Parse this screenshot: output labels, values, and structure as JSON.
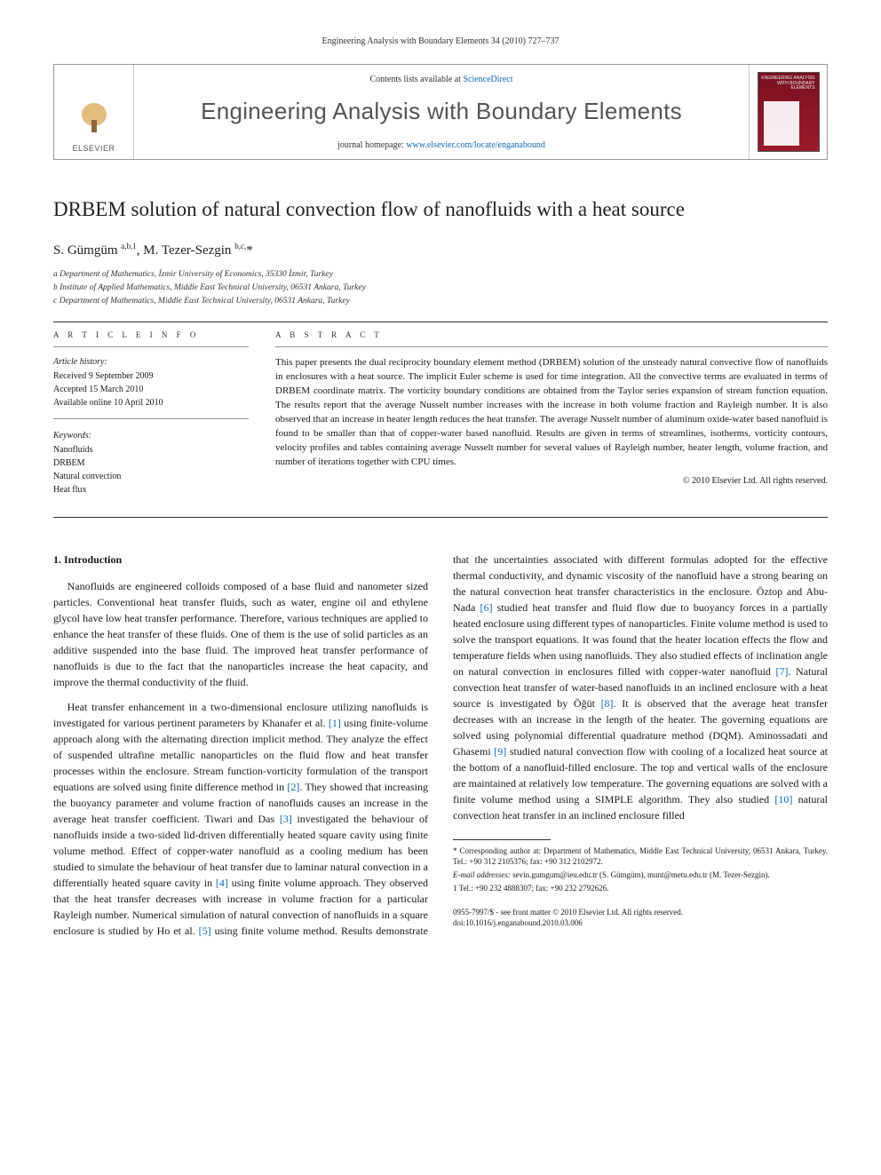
{
  "running_head": "Engineering Analysis with Boundary Elements 34 (2010) 727–737",
  "header": {
    "publisher_word": "ELSEVIER",
    "contents_prefix": "Contents lists available at ",
    "contents_link": "ScienceDirect",
    "journal_title": "Engineering Analysis with Boundary Elements",
    "homepage_prefix": "journal homepage: ",
    "homepage_url": "www.elsevier.com/locate/enganabound",
    "cover_label": "ENGINEERING ANALYSIS WITH BOUNDARY ELEMENTS"
  },
  "article": {
    "title": "DRBEM solution of natural convection flow of nanofluids with a heat source",
    "authors_html": "S. Gümgüm <sup>a,b,1</sup>, M. Tezer-Sezgin <sup>b,c,</sup><span class=\"star\">*</span>",
    "affiliations": [
      "a Department of Mathematics, İzmir University of Economics, 35330 İzmir, Turkey",
      "b Institute of Applied Mathematics, Middle East Technical University, 06531 Ankara, Turkey",
      "c Department of Mathematics, Middle East Technical University, 06531 Ankara, Turkey"
    ]
  },
  "info": {
    "info_head": "A R T I C L E   I N F O",
    "abstract_head": "A B S T R A C T",
    "history_label": "Article history:",
    "history": [
      "Received 9 September 2009",
      "Accepted 15 March 2010",
      "Available online 10 April 2010"
    ],
    "keywords_label": "Keywords:",
    "keywords": [
      "Nanofluids",
      "DRBEM",
      "Natural convection",
      "Heat flux"
    ],
    "abstract": "This paper presents the dual reciprocity boundary element method (DRBEM) solution of the unsteady natural convective flow of nanofluids in enclosures with a heat source. The implicit Euler scheme is used for time integration. All the convective terms are evaluated in terms of DRBEM coordinate matrix. The vorticity boundary conditions are obtained from the Taylor series expansion of stream function equation. The results report that the average Nusselt number increases with the increase in both volume fraction and Rayleigh number. It is also observed that an increase in heater length reduces the heat transfer. The average Nusselt number of aluminum oxide-water based nanofluid is found to be smaller than that of copper-water based nanofluid. Results are given in terms of streamlines, isotherms, vorticity contours, velocity profiles and tables containing average Nusselt number for several values of Rayleigh number, heater length, volume fraction, and number of iterations together with CPU times.",
    "copyright": "© 2010 Elsevier Ltd. All rights reserved."
  },
  "body": {
    "section_no": "1.",
    "section_title": "Introduction",
    "p1": "Nanofluids are engineered colloids composed of a base fluid and nanometer sized particles. Conventional heat transfer fluids, such as water, engine oil and ethylene glycol have low heat transfer performance. Therefore, various techniques are applied to enhance the heat transfer of these fluids. One of them is the use of solid particles as an additive suspended into the base fluid. The improved heat transfer performance of nanofluids is due to the fact that the nanoparticles increase the heat capacity, and improve the thermal conductivity of the fluid.",
    "p2a": "Heat transfer enhancement in a two-dimensional enclosure utilizing nanofluids is investigated for various pertinent parameters by Khanafer et al. ",
    "r1": "[1]",
    "p2b": " using finite-volume approach along with the alternating direction implicit method. They analyze the effect of suspended ultrafine metallic nanoparticles on the fluid flow and heat transfer processes within the enclosure. Stream function-vorticity formulation of the transport equations are solved using finite difference method in ",
    "r2": "[2]",
    "p2c": ". They showed that increasing the buoyancy parameter and volume fraction of nanofluids causes an increase in the average heat transfer coefficient. Tiwari and Das ",
    "r3": "[3]",
    "p2d": " investigated the behaviour of nanofluids inside a two-sided lid-driven differentially heated square cavity using finite volume method. Effect of copper-water nanofluid as a cooling medium has been studied to simulate the behaviour of heat transfer due to laminar natural convection in a differentially heated square cavity in ",
    "r4": "[4]",
    "p2e": " using finite volume approach. They observed that the heat transfer decreases with increase in volume fraction for a particular Rayleigh number. Numerical simulation of natural convection of nanofluids in a square enclosure is studied by Ho et al. ",
    "r5": "[5]",
    "p2f": " using finite volume method. Results demonstrate that the uncertainties associated with different formulas adopted for the effective thermal conductivity, and dynamic viscosity of the nanofluid have a strong bearing on the natural convection heat transfer characteristics in the enclosure. Öztop and Abu-Nada ",
    "r6": "[6]",
    "p2g": " studied heat transfer and fluid flow due to buoyancy forces in a partially heated enclosure using different types of nanoparticles. Finite volume method is used to solve the transport equations. It was found that the heater location effects the flow and temperature fields when using nanofluids. They also studied effects of inclination angle on natural convection in enclosures filled with copper-water nanofluid ",
    "r7": "[7]",
    "p2h": ". Natural convection heat transfer of water-based nanofluids in an inclined enclosure with a heat source is investigated by Öğüt ",
    "r8": "[8]",
    "p2i": ". It is observed that the average heat transfer decreases with an increase in the length of the heater. The governing equations are solved using polynomial differential quadrature method (DQM). Aminossadati and Ghasemi ",
    "r9": "[9]",
    "p2j": " studied natural convection flow with cooling of a localized heat source at the bottom of a nanofluid-filled enclosure. The top and vertical walls of the enclosure are maintained at relatively low temperature. The governing equations are solved with a finite volume method using a SIMPLE algorithm. They also studied ",
    "r10": "[10]",
    "p2k": " natural convection heat transfer in an inclined enclosure filled"
  },
  "footnotes": {
    "corr": "* Corresponding author at: Department of Mathematics, Middle East Technical University, 06531 Ankara, Turkey. Tel.: +90 312 2105376; fax: +90 312 2102972.",
    "email_label": "E-mail addresses:",
    "email1": "sevin.gumgum@ieu.edu.tr (S. Gümgüm),",
    "email2": "munt@metu.edu.tr (M. Tezer-Sezgin).",
    "phone": "1 Tel.: +90 232 4888307; fax: +90 232 2792626.",
    "rights1": "0955-7997/$ - see front matter © 2010 Elsevier Ltd. All rights reserved.",
    "rights2": "doi:10.1016/j.enganabound.2010.03.006"
  },
  "colors": {
    "link": "#1169b0",
    "text": "#1a1a1a",
    "cover_bg": "#8a1626"
  }
}
